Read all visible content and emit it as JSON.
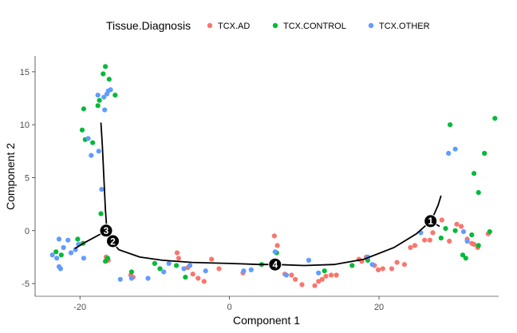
{
  "chart_data": {
    "type": "scatter",
    "xlabel": "Component 1",
    "ylabel": "Component 2",
    "xlim": [
      -26,
      36
    ],
    "ylim": [
      -6.2,
      16.5
    ],
    "x_ticks": [
      -20,
      0,
      20
    ],
    "y_ticks": [
      -5,
      0,
      5,
      10,
      15
    ],
    "grid": false,
    "legend": {
      "title": "Tissue.Diagnosis",
      "position": "top"
    },
    "series": [
      {
        "name": "TCX.AD",
        "color": "#F8766D",
        "points": [
          [
            -16.5,
            -2.5
          ],
          [
            -16.2,
            -2.8
          ],
          [
            -13.2,
            -4.2
          ],
          [
            -12.9,
            -4.4
          ],
          [
            -7,
            -2.1
          ],
          [
            -6.8,
            -2.6
          ],
          [
            -5.6,
            -3.5
          ],
          [
            -4.9,
            -4.1
          ],
          [
            -4.2,
            -4.5
          ],
          [
            -3.4,
            -4.8
          ],
          [
            -2.4,
            -2.7
          ],
          [
            -1.4,
            -3.6
          ],
          [
            1.8,
            -4.0
          ],
          [
            6.0,
            -0.5
          ],
          [
            6.4,
            -1.4
          ],
          [
            7.4,
            -4.1
          ],
          [
            8.3,
            -4.2
          ],
          [
            8.8,
            -4.6
          ],
          [
            9.7,
            -5.1
          ],
          [
            11.4,
            -5.2
          ],
          [
            11.9,
            -4.8
          ],
          [
            12.4,
            -4.6
          ],
          [
            12.9,
            -4.3
          ],
          [
            13.6,
            -4.2
          ],
          [
            14.3,
            -4.2
          ],
          [
            17.3,
            -2.7
          ],
          [
            17.7,
            -2.9
          ],
          [
            18.3,
            -2.5
          ],
          [
            19.4,
            -3.3
          ],
          [
            19.9,
            -3.7
          ],
          [
            20.5,
            -3.6
          ],
          [
            21.7,
            -3.6
          ],
          [
            22.4,
            -3.0
          ],
          [
            23.4,
            -3.2
          ],
          [
            24.2,
            -1.6
          ],
          [
            24.8,
            -1.4
          ],
          [
            26.1,
            -0.9
          ],
          [
            26.8,
            -0.9
          ],
          [
            27.2,
            -0.2
          ],
          [
            28.4,
            1.0
          ],
          [
            29.4,
            -1.0
          ],
          [
            30.4,
            0.6
          ],
          [
            31.0,
            0.4
          ],
          [
            31.8,
            -0.8
          ],
          [
            32.4,
            -1.2
          ],
          [
            32.7,
            -1.3
          ],
          [
            33.2,
            -1.6
          ],
          [
            34.6,
            -0.3
          ]
        ]
      },
      {
        "name": "TCX.CONTROL",
        "color": "#00BA38",
        "points": [
          [
            -19.5,
            11.5
          ],
          [
            -19.7,
            9.5
          ],
          [
            -19.3,
            8.6
          ],
          [
            -18.3,
            8.3
          ],
          [
            -17.6,
            11.8
          ],
          [
            -17.4,
            12.3
          ],
          [
            -16.9,
            14.8
          ],
          [
            -16.6,
            15.5
          ],
          [
            -16.1,
            14.3
          ],
          [
            -15.3,
            12.8
          ],
          [
            -17.2,
            1.6
          ],
          [
            -16.6,
            -2.9
          ],
          [
            -16.3,
            -2.6
          ],
          [
            -13.1,
            -3.9
          ],
          [
            -10,
            -3.1
          ],
          [
            -9.3,
            -3.6
          ],
          [
            -7.1,
            -3.3
          ],
          [
            -5.9,
            -4.4
          ],
          [
            -23.2,
            -2.0
          ],
          [
            -22.5,
            -2.3
          ],
          [
            -20.3,
            -0.8
          ],
          [
            -19.6,
            -1.2
          ],
          [
            4.3,
            -3.2
          ],
          [
            6.3,
            -2.1
          ],
          [
            12.7,
            -3.8
          ],
          [
            16.4,
            -3.3
          ],
          [
            18.5,
            -2.8
          ],
          [
            28.3,
            -0.7
          ],
          [
            28.9,
            0.2
          ],
          [
            30.2,
            0.0
          ],
          [
            31.2,
            -2.3
          ],
          [
            31.6,
            -2.6
          ],
          [
            32.4,
            -0.4
          ],
          [
            33.3,
            -1.4
          ],
          [
            29.5,
            10.0
          ],
          [
            32.7,
            5.4
          ],
          [
            33.3,
            3.6
          ],
          [
            34.1,
            7.3
          ],
          [
            35.5,
            10.6
          ],
          [
            34.8,
            -0.1
          ]
        ]
      },
      {
        "name": "TCX.OTHER",
        "color": "#619CFF",
        "points": [
          [
            -18.9,
            8.7
          ],
          [
            -18.5,
            7.1
          ],
          [
            -17.5,
            7.5
          ],
          [
            -17.1,
            3.9
          ],
          [
            -16.8,
            12.6
          ],
          [
            -16.4,
            12.9
          ],
          [
            -16.2,
            13.2
          ],
          [
            -15.9,
            13.3
          ],
          [
            -17.6,
            12.8
          ],
          [
            -16.7,
            11.4
          ],
          [
            -23.7,
            -2.3
          ],
          [
            -23.1,
            -2.6
          ],
          [
            -22.8,
            -3.4
          ],
          [
            -22.6,
            -3.6
          ],
          [
            -22.2,
            -1.6
          ],
          [
            -21.6,
            -0.9
          ],
          [
            -21.2,
            -2.1
          ],
          [
            -20.6,
            -1.8
          ],
          [
            -20.2,
            -1.3
          ],
          [
            -19.5,
            -2.6
          ],
          [
            -22.8,
            -0.8
          ],
          [
            -14.6,
            -4.6
          ],
          [
            -13.1,
            -4.5
          ],
          [
            -10.9,
            -4.5
          ],
          [
            -8.8,
            -3.9
          ],
          [
            -8.1,
            -3.1
          ],
          [
            -6.1,
            -3.6
          ],
          [
            -5.3,
            -3.3
          ],
          [
            -3.2,
            -3.8
          ],
          [
            1.9,
            -3.8
          ],
          [
            2.9,
            -3.7
          ],
          [
            6.1,
            -2.0
          ],
          [
            7.6,
            -4.2
          ],
          [
            10.6,
            -2.8
          ],
          [
            11.9,
            -4.0
          ],
          [
            18.5,
            -2.5
          ],
          [
            19.1,
            -3.2
          ],
          [
            25.6,
            -0.2
          ],
          [
            29.3,
            7.3
          ],
          [
            30.2,
            7.7
          ],
          [
            31.3,
            -0.1
          ],
          [
            31.8,
            -1.0
          ]
        ]
      }
    ],
    "trajectory": [
      [
        -17.2,
        10.2
      ],
      [
        -17.0,
        8.0
      ],
      [
        -16.8,
        5.0
      ],
      [
        -16.6,
        2.0
      ],
      [
        -16.4,
        0.0
      ],
      [
        -15.8,
        -1.0
      ],
      [
        -14.8,
        -1.8
      ],
      [
        -12.0,
        -2.5
      ],
      [
        -9.0,
        -2.8
      ],
      [
        -5.0,
        -3.0
      ],
      [
        0,
        -3.1
      ],
      [
        4.0,
        -3.2
      ],
      [
        6.1,
        -3.2
      ],
      [
        10.0,
        -3.3
      ],
      [
        14.0,
        -3.2
      ],
      [
        18.0,
        -2.7
      ],
      [
        22.0,
        -1.6
      ],
      [
        25.0,
        -0.3
      ],
      [
        26.9,
        0.9
      ],
      [
        27.4,
        1.6
      ],
      [
        27.9,
        2.4
      ],
      [
        28.3,
        3.3
      ]
    ],
    "trajectory_branches": [
      [
        [
          -16.4,
          0.0
        ],
        [
          -19.3,
          -1.1
        ],
        [
          -20.7,
          -1.7
        ]
      ],
      [
        [
          26.9,
          0.9
        ],
        [
          28.1,
          0.4
        ]
      ]
    ],
    "branch_nodes": [
      {
        "label": "1",
        "x": 26.9,
        "y": 0.9
      },
      {
        "label": "2",
        "x": -15.6,
        "y": -1.0
      },
      {
        "label": "3",
        "x": -16.5,
        "y": 0.0
      },
      {
        "label": "4",
        "x": 6.1,
        "y": -3.2
      }
    ]
  }
}
